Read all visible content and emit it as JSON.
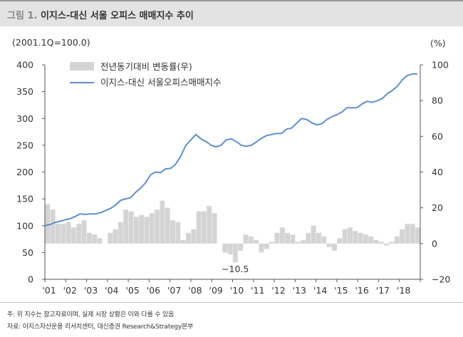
{
  "header": {
    "prefix": "그림 1.",
    "title": "이지스-대신 서울 오피스 매매지수 추이"
  },
  "units": {
    "left": "(2001.1Q=100.0)",
    "right": "(%)"
  },
  "footnotes": {
    "note": "주: 위 지수는 참고자료이며, 실제 시장 상황은 이와 다를 수 있음",
    "source": "자료: 이지스자산운용 리서치센터, 대신증권 Research&Strategy본부"
  },
  "colors": {
    "bar": "#d4d4d4",
    "line": "#5b8fcf"
  },
  "chart_data": {
    "type": "bar+line",
    "x_tick_labels": [
      "'01",
      "'02",
      "'03",
      "'04",
      "'05",
      "'06",
      "'07",
      "'08",
      "'09",
      "'10",
      "'11",
      "'12",
      "'13",
      "'14",
      "'15",
      "'16",
      "'17",
      "'18"
    ],
    "y_left": {
      "range": [
        0,
        400
      ],
      "ticks": [
        "0",
        "50",
        "100",
        "150",
        "200",
        "250",
        "300",
        "350",
        "400"
      ]
    },
    "y_right": {
      "range": [
        -20,
        100
      ],
      "ticks": [
        "-20",
        "0",
        "20",
        "40",
        "60",
        "80",
        "100"
      ]
    },
    "annotation": "−10.5",
    "legend_position": "top-left",
    "series": [
      {
        "name": "전년동기대비 변동률(우)",
        "kind": "bar",
        "axis": "right",
        "values": [
          22,
          19,
          11,
          11,
          12,
          9,
          11,
          13,
          6,
          5,
          3,
          0,
          6,
          8,
          12,
          19,
          18,
          15,
          16,
          15,
          17,
          19,
          24,
          20,
          13,
          12,
          2,
          6,
          8,
          18,
          18,
          21,
          17,
          0,
          -5,
          -6,
          -10.5,
          -4,
          5,
          4,
          2,
          -5,
          -3,
          1,
          6,
          9,
          6,
          5,
          1,
          2,
          6,
          10,
          6,
          4,
          -2,
          -4,
          3,
          8,
          9,
          7,
          6,
          5,
          4,
          2,
          1,
          -1,
          1,
          4,
          8,
          11,
          11,
          9
        ]
      },
      {
        "name": "이지스-대신 서울오피스매매지수",
        "kind": "line",
        "axis": "left",
        "values": [
          100,
          102,
          106,
          108,
          111,
          113,
          117,
          122,
          121,
          122,
          122,
          124,
          128,
          132,
          138,
          147,
          150,
          152,
          162,
          170,
          180,
          195,
          200,
          199,
          206,
          207,
          215,
          230,
          250,
          260,
          270,
          262,
          257,
          250,
          247,
          250,
          260,
          262,
          257,
          250,
          248,
          250,
          256,
          263,
          268,
          270,
          272,
          272,
          280,
          282,
          291,
          300,
          298,
          292,
          288,
          290,
          298,
          303,
          307,
          312,
          320,
          320,
          320,
          327,
          332,
          330,
          333,
          337,
          346,
          352,
          360,
          372,
          380,
          383,
          383
        ]
      }
    ]
  }
}
